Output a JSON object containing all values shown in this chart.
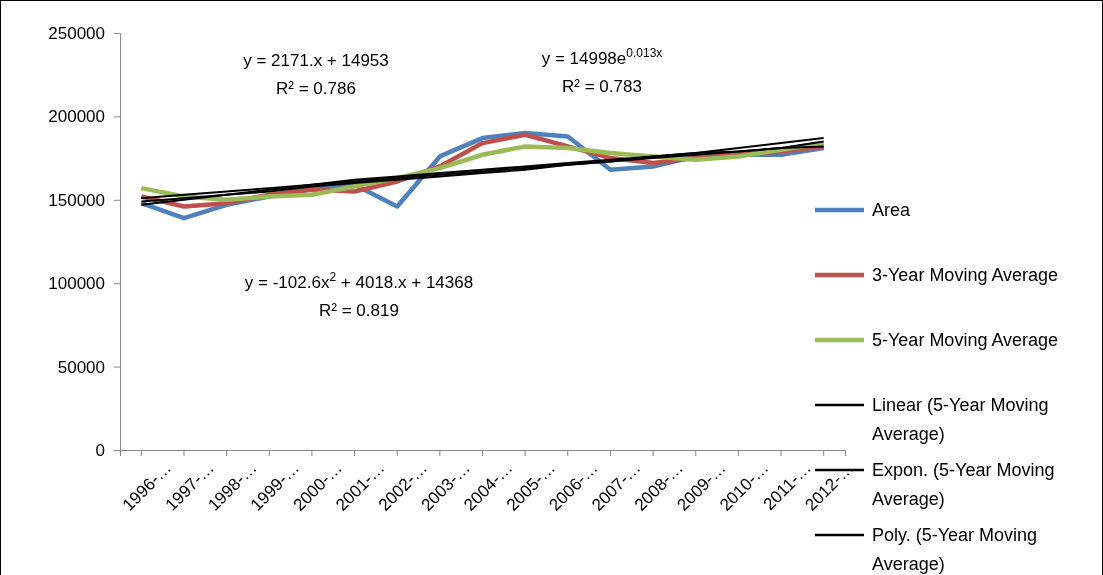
{
  "chart_data": {
    "type": "line",
    "categories": [
      "1996-…",
      "1997-…",
      "1998-…",
      "1999-…",
      "2000-…",
      "2001-…",
      "2002-…",
      "2003-…",
      "2004-…",
      "2005-…",
      "2006-…",
      "2007-…",
      "2008-…",
      "2009-…",
      "2010-…",
      "2011-…",
      "2012-…"
    ],
    "ylim": [
      0,
      250000
    ],
    "yticks": [
      0,
      50000,
      100000,
      150000,
      200000,
      250000
    ],
    "grid": false,
    "legend": "right",
    "marker": "none",
    "series": [
      {
        "name": "Area",
        "color": "#4f81bd",
        "values": [
          148000,
          139000,
          147000,
          152000,
          157000,
          159000,
          146000,
          176000,
          187000,
          190000,
          188000,
          168000,
          170000,
          176000,
          177000,
          177000,
          181000
        ]
      },
      {
        "name": "3-Year Moving Average",
        "color": "#c0504d",
        "values": [
          152000,
          146000,
          148000,
          153000,
          156000,
          155000,
          161000,
          170000,
          184000,
          189000,
          182000,
          175000,
          172000,
          175000,
          177000,
          179000,
          182000
        ]
      },
      {
        "name": "5-Year Moving Average",
        "color": "#9bbb59",
        "values": [
          157000,
          152000,
          150000,
          152000,
          153000,
          158000,
          163000,
          169000,
          177000,
          182000,
          181000,
          178000,
          176000,
          174000,
          176000,
          180000,
          184000
        ]
      },
      {
        "name": "Linear (5-Year Moving Average)",
        "color": "#000000",
        "values": [
          149000,
          151000,
          153000,
          155000,
          158000,
          160000,
          162000,
          164000,
          166000,
          168000,
          171000,
          173000,
          175000,
          177000,
          179000,
          181000,
          185000
        ]
      },
      {
        "name": "Expon. (5-Year Moving Average)",
        "color": "#000000",
        "values": [
          151000,
          153000,
          155000,
          157000,
          159000,
          161000,
          163000,
          165000,
          167000,
          169000,
          171000,
          173000,
          176000,
          178000,
          181000,
          184000,
          187000
        ]
      },
      {
        "name": "Poly. (5-Year Moving Average)",
        "color": "#000000",
        "values": [
          147000,
          150000,
          153000,
          156000,
          159000,
          162000,
          164000,
          166000,
          168000,
          170000,
          172000,
          174000,
          176000,
          178000,
          179000,
          181000,
          182000
        ]
      }
    ],
    "annotations": [
      "y = 2171.x + 14953",
      "R² = 0.786",
      "y = 14998e$^{0.013x}$",
      "R² = 0.783",
      "y = -102.6x$^{2}$ + 4018.x + 14368",
      "R² = 0.819"
    ]
  }
}
